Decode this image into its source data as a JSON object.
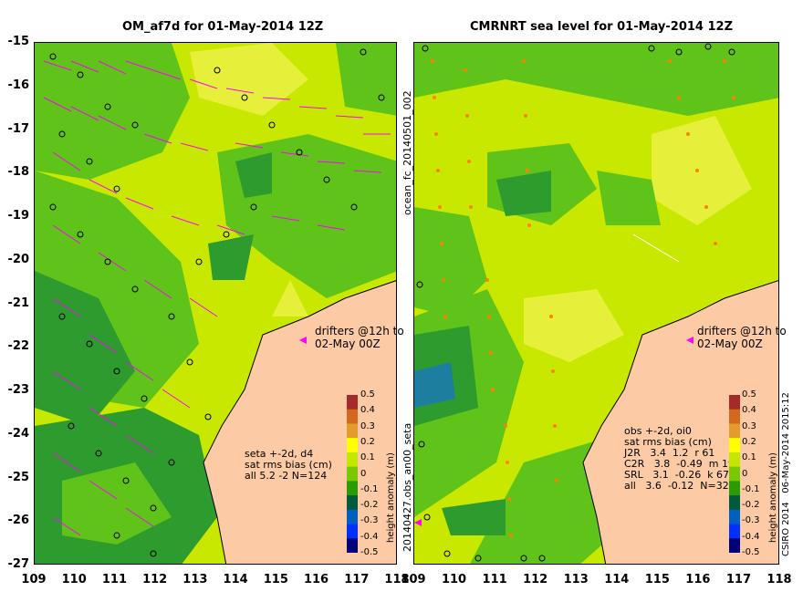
{
  "left_panel": {
    "title": "OM_af7d for 01-May-2014 12Z",
    "side_label": "ocean_fc_20140501_002",
    "drifters": [
      "drifters @12h to",
      "02-May 00Z"
    ],
    "stats": [
      "seta +-2d, d4",
      "sat rms bias (cm)",
      "all 5.2 -2 N=124"
    ]
  },
  "right_panel": {
    "title": "CMRNRT sea level  for 01-May-2014 12Z",
    "side_label": "20140427.obs_an00_seta",
    "drifters": [
      "drifters @12h to",
      "02-May 00Z"
    ],
    "stats": [
      "obs +-2d, oi0",
      "sat rms bias (cm)",
      "J2R   3.4  1.2  r 61",
      "C2R   3.8  -0.49  m 19",
      "SRL   3.1  -0.26  k 67",
      "all   3.6  -0.12  N=322"
    ]
  },
  "colorbar": {
    "title": "height anomaly (m)",
    "ticks": [
      "0.5",
      "0.4",
      "0.3",
      "0.2",
      "0.1",
      "0",
      "-0.1",
      "-0.2",
      "-0.3",
      "-0.4",
      "-0.5"
    ],
    "colors": [
      "#a52a2a",
      "#d2691e",
      "#e39b2c",
      "#ffff00",
      "#c5e600",
      "#7ac800",
      "#2a9b00",
      "#005a3c",
      "#0060c0",
      "#0030ff",
      "#00007a"
    ]
  },
  "credits": [
    "CSIRO 2014",
    "06-May-2014 2015:12"
  ],
  "x_axis": [
    "109",
    "110",
    "111",
    "112",
    "113",
    "114",
    "115",
    "116",
    "117",
    "118"
  ],
  "y_axis": [
    "-15",
    "-16",
    "-17",
    "-18",
    "-19",
    "-20",
    "-21",
    "-22",
    "-23",
    "-24",
    "-25",
    "-26",
    "-27"
  ],
  "colors": {
    "land": "#fccba5",
    "sea_light": "#c9e800",
    "sea_green": "#5fc31a",
    "sea_dark": "#2e9b2e",
    "yellow": "#e6f03a",
    "drifter_arrow": "#ff00ff",
    "track_circle": "#000000"
  }
}
